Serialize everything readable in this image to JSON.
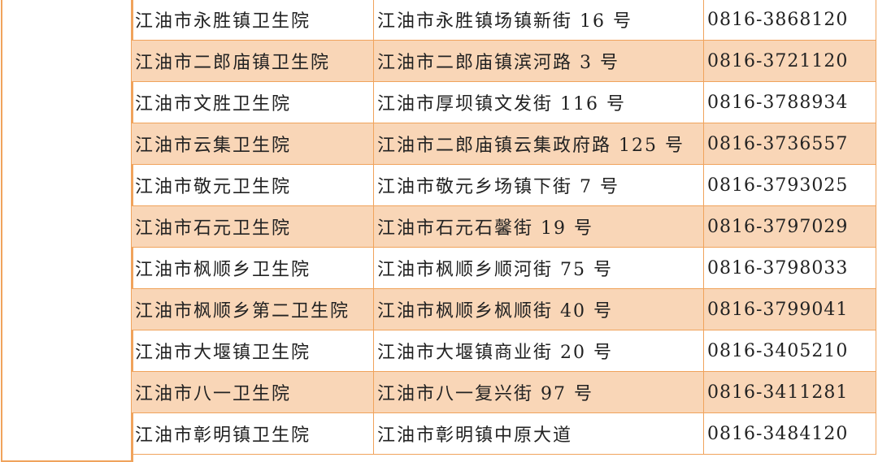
{
  "colors": {
    "border": "#f0a35c",
    "alt_row": "#f9d6b7"
  },
  "rows": [
    {
      "name": "江油市永胜镇卫生院",
      "address": "江油市永胜镇场镇新街 16 号",
      "phone": "0816-3868120"
    },
    {
      "name": "江油市二郎庙镇卫生院",
      "address": "江油市二郎庙镇滨河路 3 号",
      "phone": "0816-3721120"
    },
    {
      "name": "江油市文胜卫生院",
      "address": "江油市厚坝镇文发街 116 号",
      "phone": "0816-3788934"
    },
    {
      "name": "江油市云集卫生院",
      "address": "江油市二郎庙镇云集政府路 125 号",
      "phone": "0816-3736557"
    },
    {
      "name": "江油市敬元卫生院",
      "address": "江油市敬元乡场镇下街 7 号",
      "phone": "0816-3793025"
    },
    {
      "name": "江油市石元卫生院",
      "address": "江油市石元石馨街 19 号",
      "phone": "0816-3797029"
    },
    {
      "name": "江油市枫顺乡卫生院",
      "address": "江油市枫顺乡顺河街 75 号",
      "phone": "0816-3798033"
    },
    {
      "name": "江油市枫顺乡第二卫生院",
      "address": "江油市枫顺乡枫顺街 40 号",
      "phone": "0816-3799041"
    },
    {
      "name": "江油市大堰镇卫生院",
      "address": "江油市大堰镇商业街 20 号",
      "phone": "0816-3405210"
    },
    {
      "name": "江油市八一卫生院",
      "address": "江油市八一复兴街 97 号",
      "phone": "0816-3411281"
    },
    {
      "name": "江油市彰明镇卫生院",
      "address": "江油市彰明镇中原大道",
      "phone": "0816-3484120"
    }
  ]
}
